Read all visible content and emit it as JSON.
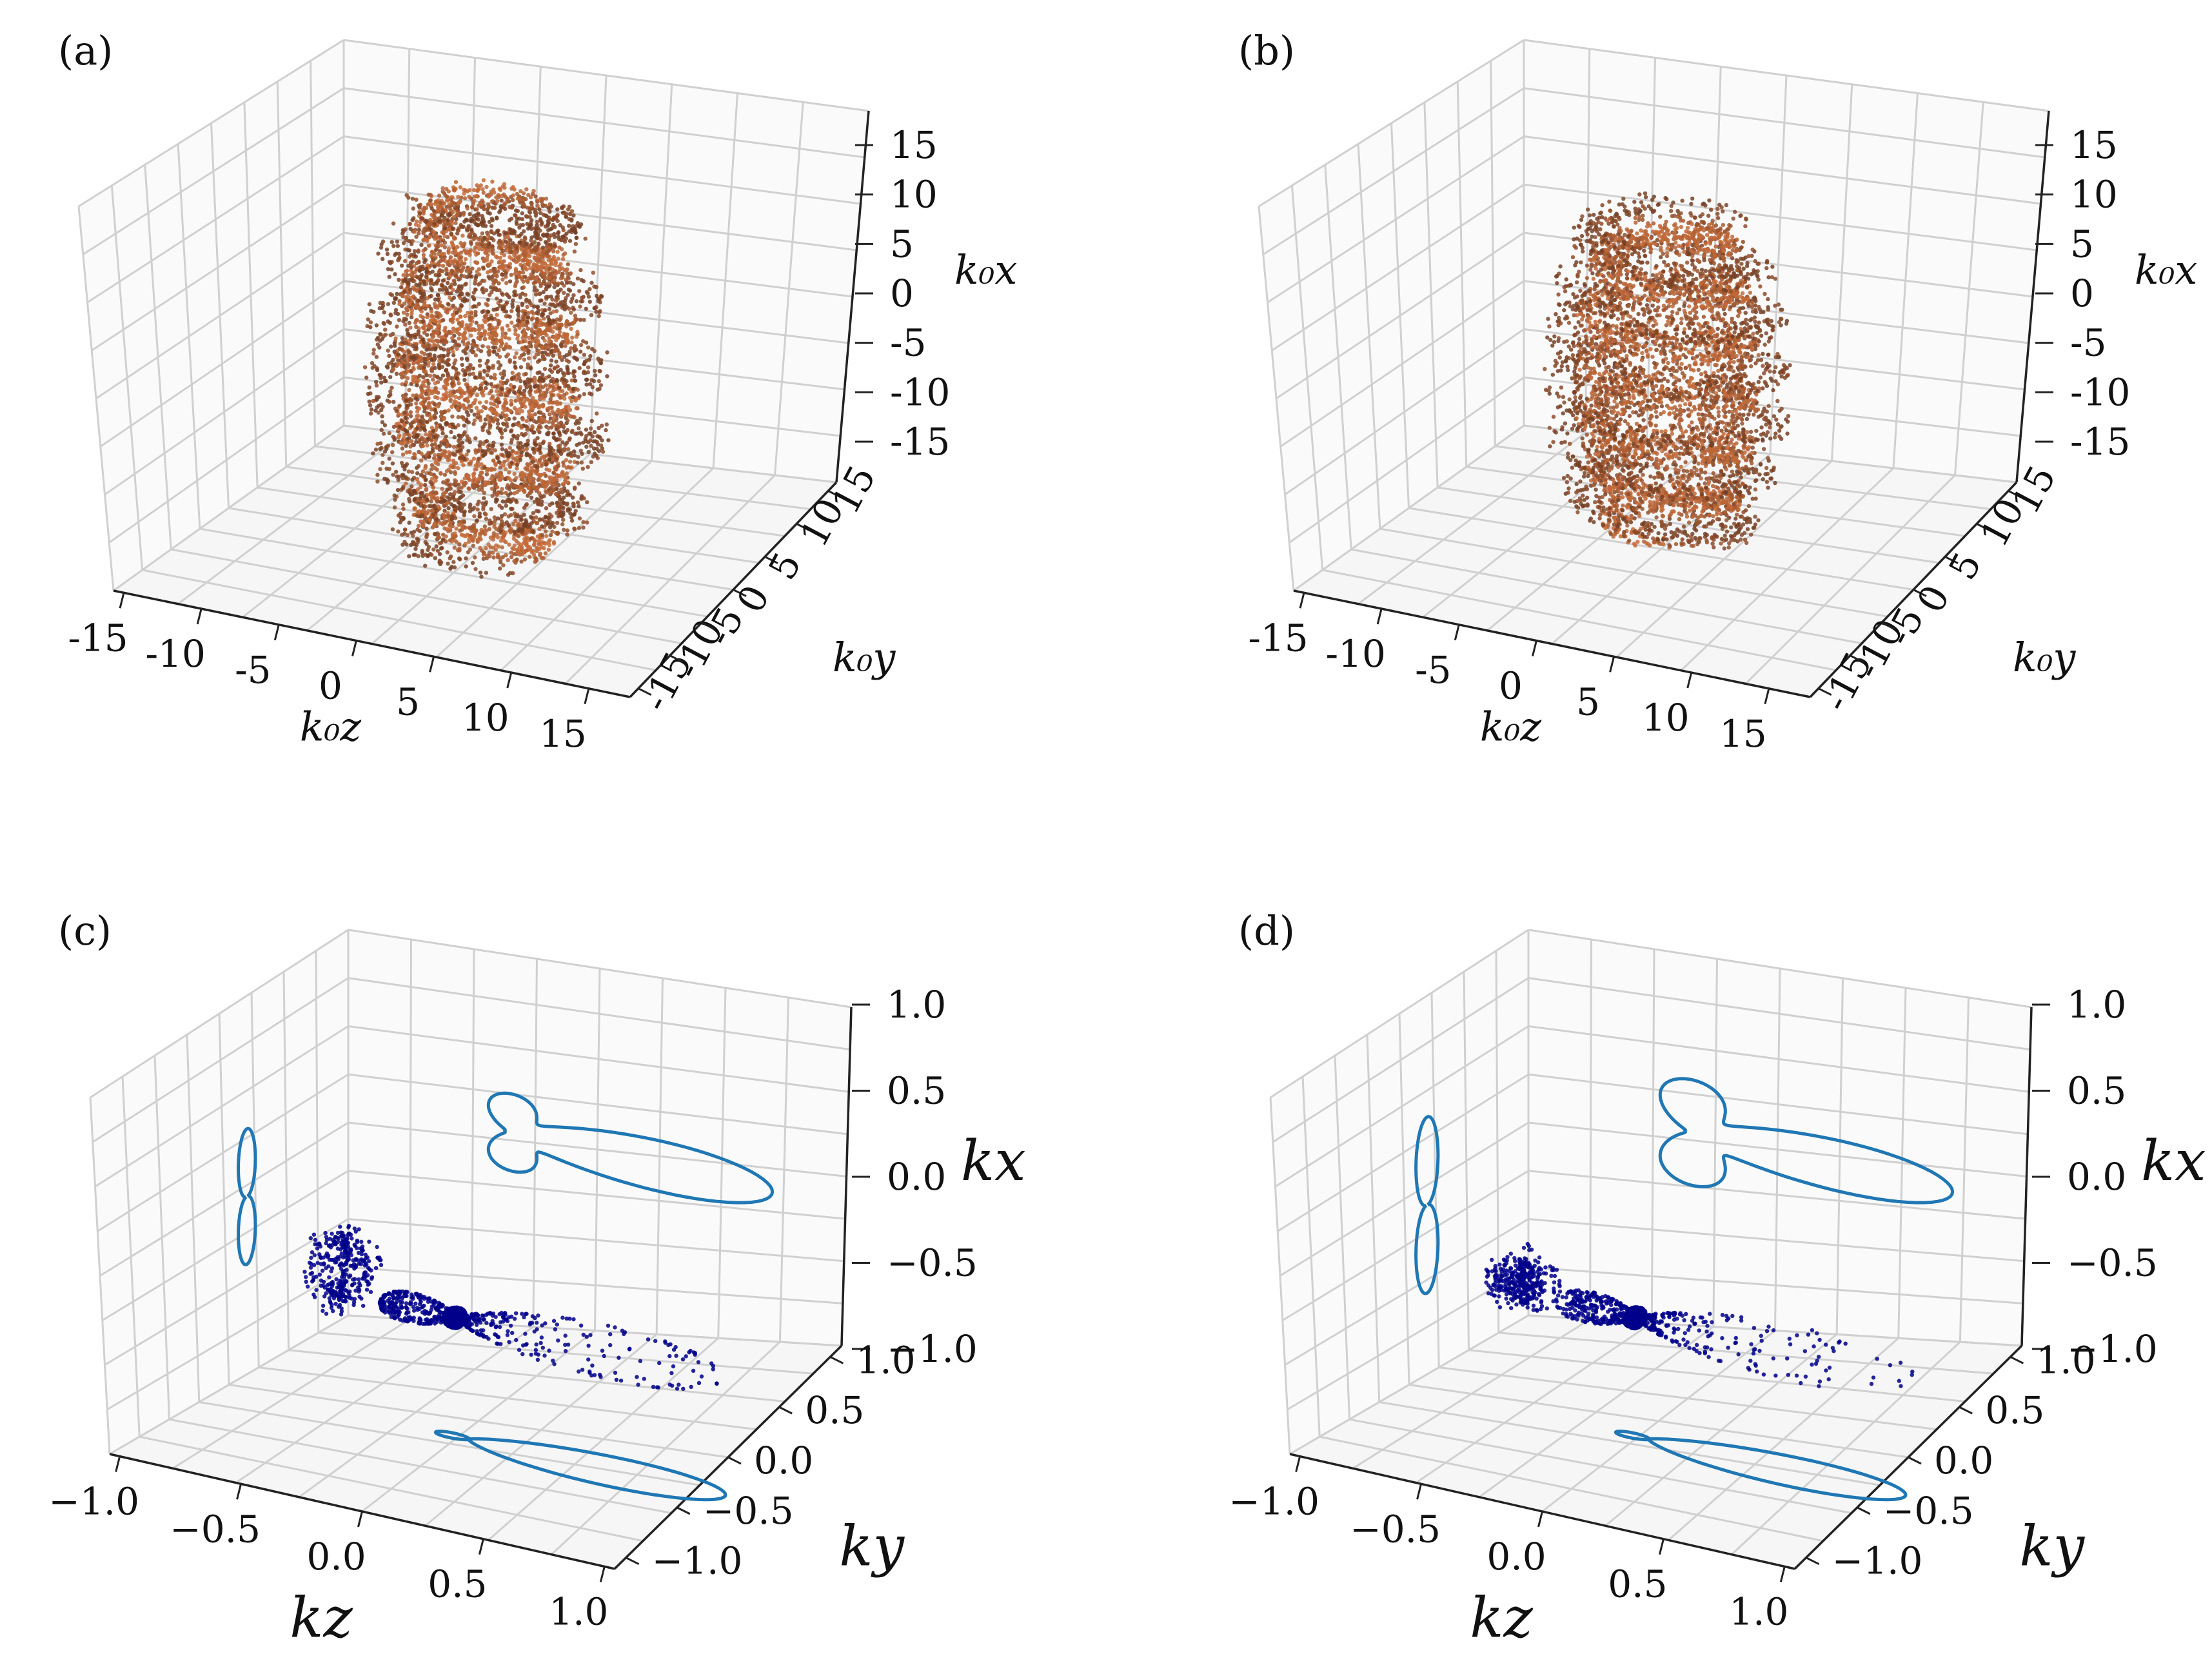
{
  "figure": {
    "panels": [
      {
        "label": "(a)",
        "kind": "scatter3d",
        "axes": {
          "vertical": {
            "label": "k₀x",
            "ticks": [
              "15",
              "10",
              "5",
              "0",
              "-5",
              "-10",
              "-15"
            ],
            "range": [
              -18,
              18
            ]
          },
          "horizontal": {
            "label": "k₀z",
            "ticks": [
              "-15",
              "-10",
              "-5",
              "0",
              "5",
              "10",
              "15"
            ],
            "range": [
              -18,
              18
            ]
          },
          "depth": {
            "label": "k₀y",
            "ticks": [
              "-15",
              "-10",
              "-5",
              "0",
              "5",
              "10",
              "15"
            ],
            "range": [
              -18,
              18
            ]
          }
        },
        "color": "#b4662e",
        "cloud": {
          "half_height": 17,
          "radius": 8,
          "helix_turns": 5
        }
      },
      {
        "label": "(b)",
        "kind": "scatter3d",
        "axes": {
          "vertical": {
            "label": "k₀x",
            "ticks": [
              "15",
              "10",
              "5",
              "0",
              "-5",
              "-10",
              "-15"
            ],
            "range": [
              -18,
              18
            ]
          },
          "horizontal": {
            "label": "k₀z",
            "ticks": [
              "-15",
              "-10",
              "-5",
              "0",
              "5",
              "10",
              "15"
            ],
            "range": [
              -18,
              18
            ]
          },
          "depth": {
            "label": "k₀y",
            "ticks": [
              "-15",
              "-10",
              "-5",
              "0",
              "5",
              "10",
              "15"
            ],
            "range": [
              -18,
              18
            ]
          }
        },
        "color": "#b4662e",
        "cloud": {
          "half_height": 15,
          "radius": 8,
          "helix_turns": 6
        }
      },
      {
        "label": "(c)",
        "kind": "pattern3d",
        "axes": {
          "vertical": {
            "label": "kx",
            "ticks": [
              "1.0",
              "0.5",
              "0.0",
              "−0.5",
              "−1.0"
            ],
            "range": [
              -1,
              1
            ]
          },
          "horizontal": {
            "label": "kz",
            "ticks": [
              "−1.0",
              "−0.5",
              "0.0",
              "0.5",
              "1.0"
            ],
            "range": [
              -1,
              1
            ]
          },
          "depth": {
            "label": "ky",
            "ticks": [
              "1.0",
              "0.5",
              "0.0",
              "−0.5",
              "−1.0"
            ],
            "range": [
              -1,
              1
            ]
          }
        },
        "scatter_color": "#00008b",
        "projection_color": "#1f77b4"
      },
      {
        "label": "(d)",
        "kind": "pattern3d",
        "axes": {
          "vertical": {
            "label": "kx",
            "ticks": [
              "1.0",
              "0.5",
              "0.0",
              "−0.5",
              "−1.0"
            ],
            "range": [
              -1,
              1
            ]
          },
          "horizontal": {
            "label": "kz",
            "ticks": [
              "−1.0",
              "−0.5",
              "0.0",
              "0.5",
              "1.0"
            ],
            "range": [
              -1,
              1
            ]
          },
          "depth": {
            "label": "ky",
            "ticks": [
              "1.0",
              "0.5",
              "0.0",
              "−0.5",
              "−1.0"
            ],
            "range": [
              -1,
              1
            ]
          }
        },
        "scatter_color": "#00008b",
        "projection_color": "#1f77b4"
      }
    ]
  },
  "chart_data": [
    {
      "type": "scatter",
      "title": "(a)",
      "xlabel": "k₀z",
      "ylabel": "k₀y",
      "zlabel": "k₀x",
      "xlim": [
        -18,
        18
      ],
      "ylim": [
        -18,
        18
      ],
      "zlim": [
        -18,
        18
      ],
      "grid": true,
      "series": [
        {
          "color": "#b4662e",
          "extent": {
            "z": [
              -17,
              17
            ],
            "radius": 8
          }
        }
      ]
    },
    {
      "type": "scatter",
      "title": "(b)",
      "xlabel": "k₀z",
      "ylabel": "k₀y",
      "zlabel": "k₀x",
      "xlim": [
        -18,
        18
      ],
      "ylim": [
        -18,
        18
      ],
      "zlim": [
        -18,
        18
      ],
      "grid": true,
      "series": [
        {
          "color": "#b4662e",
          "extent": {
            "z": [
              -15,
              15
            ],
            "radius": 8
          }
        }
      ]
    },
    {
      "type": "scatter",
      "title": "(c)",
      "xlabel": "kz",
      "ylabel": "ky",
      "zlabel": "kx",
      "xlim": [
        -1,
        1
      ],
      "ylim": [
        -1,
        1
      ],
      "zlim": [
        -1,
        1
      ],
      "grid": true,
      "series": [
        {
          "color": "#00008b"
        },
        {
          "color": "#1f77b4"
        }
      ]
    },
    {
      "type": "scatter",
      "title": "(d)",
      "xlabel": "kz",
      "ylabel": "ky",
      "zlabel": "kx",
      "xlim": [
        -1,
        1
      ],
      "ylim": [
        -1,
        1
      ],
      "zlim": [
        -1,
        1
      ],
      "grid": true,
      "series": [
        {
          "color": "#00008b"
        },
        {
          "color": "#1f77b4"
        }
      ]
    }
  ]
}
